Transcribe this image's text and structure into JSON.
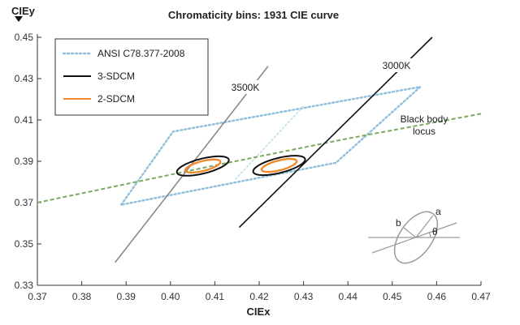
{
  "chart_data": {
    "type": "line",
    "title": "Chromaticity bins: 1931 CIE curve",
    "xlabel": "CIEx",
    "ylabel": "CIEy",
    "xlim": [
      0.37,
      0.47
    ],
    "ylim": [
      0.33,
      0.45
    ],
    "xticks": [
      "0.37",
      "0.38",
      "0.39",
      "0.40",
      "0.41",
      "0.42",
      "0.43",
      "0.44",
      "0.45",
      "0.46",
      "0.47"
    ],
    "yticks": [
      "0.33",
      "0.35",
      "0.37",
      "0.39",
      "0.41",
      "0.43",
      "0.45"
    ],
    "grid": false,
    "legend_position": "top-left",
    "legend": [
      {
        "label": "ANSI C78.377-2008",
        "color": "#8fbfdc",
        "style": "dotted"
      },
      {
        "label": "3-SDCM",
        "color": "#111111",
        "style": "solid"
      },
      {
        "label": "2-SDCM",
        "color": "#ef8a2c",
        "style": "solid"
      }
    ],
    "ansi_quadrangle": [
      [
        0.3889,
        0.369
      ],
      [
        0.4006,
        0.4044
      ],
      [
        0.4563,
        0.426
      ],
      [
        0.4373,
        0.3893
      ]
    ],
    "ansi_divider": [
      [
        0.4147,
        0.3814
      ],
      [
        0.4299,
        0.4165
      ]
    ],
    "blackbody_locus": {
      "label": "Black body\nlocus",
      "color": "#7aaa60",
      "points": [
        [
          0.37,
          0.37
        ],
        [
          0.41,
          0.388
        ],
        [
          0.44,
          0.401
        ],
        [
          0.47,
          0.413
        ]
      ]
    },
    "isotherms": [
      {
        "label": "3500K",
        "color": "#8a8a8a",
        "points": [
          [
            0.3875,
            0.341
          ],
          [
            0.422,
            0.436
          ]
        ]
      },
      {
        "label": "3000K",
        "color": "#111111",
        "points": [
          [
            0.4155,
            0.358
          ],
          [
            0.459,
            0.45
          ]
        ]
      }
    ],
    "ellipses": [
      {
        "series": "3-SDCM",
        "cx": 0.4073,
        "cy": 0.3877,
        "a": 0.0068,
        "b": 0.0032,
        "angle_deg": 35
      },
      {
        "series": "2-SDCM",
        "cx": 0.4073,
        "cy": 0.3877,
        "a": 0.0046,
        "b": 0.0021,
        "angle_deg": 35
      },
      {
        "series": "3-SDCM",
        "cx": 0.4245,
        "cy": 0.388,
        "a": 0.0068,
        "b": 0.0032,
        "angle_deg": 35
      },
      {
        "series": "2-SDCM",
        "cx": 0.4245,
        "cy": 0.388,
        "a": 0.0046,
        "b": 0.0021,
        "angle_deg": 35
      }
    ],
    "inset_labels": {
      "a": "a",
      "b": "b",
      "theta": "θ"
    }
  }
}
